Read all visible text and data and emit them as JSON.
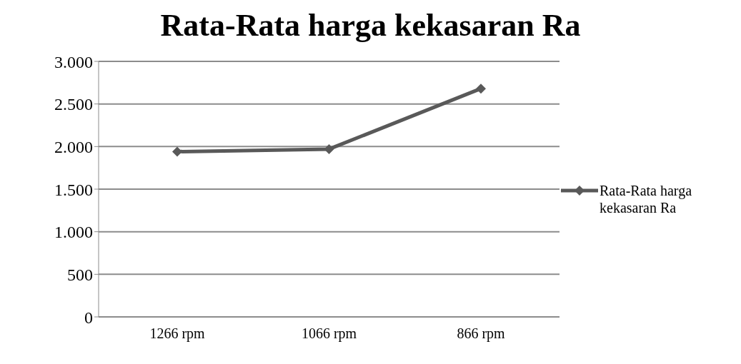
{
  "chart_data": {
    "type": "line",
    "title": "Rata-Rata harga kekasaran Ra",
    "categories": [
      "1266 rpm",
      "1066 rpm",
      "866 rpm"
    ],
    "series": [
      {
        "name": "Rata-Rata harga kekasaran Ra",
        "color": "#595959",
        "values": [
          1940,
          1970,
          2680
        ]
      }
    ],
    "ylim": [
      0,
      3000
    ],
    "yticks": [
      0,
      500,
      {
        "value": 1000,
        "label": "1.000"
      },
      {
        "value": 1500,
        "label": "1.500"
      },
      {
        "value": 2000,
        "label": "2.000"
      },
      {
        "value": 2500,
        "label": "2.500"
      },
      {
        "value": 3000,
        "label": "3.000"
      }
    ],
    "grid": "y",
    "legend": "right",
    "marker": "diamond",
    "line_style": "solid"
  }
}
